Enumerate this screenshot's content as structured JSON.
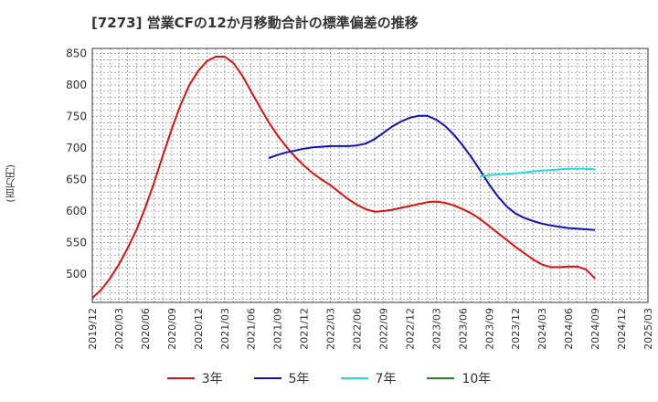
{
  "chart_data": {
    "type": "line",
    "title": "[7273]  営業CFの12か月移動合計の標準偏差の推移",
    "ylabel": "(百万円)",
    "xlabel": "",
    "ylim": [
      455,
      858
    ],
    "yticks": [
      500,
      550,
      600,
      650,
      700,
      750,
      800,
      850
    ],
    "xticks": [
      "2019/12",
      "2020/03",
      "2020/06",
      "2020/09",
      "2020/12",
      "2021/03",
      "2021/06",
      "2021/09",
      "2021/12",
      "2022/03",
      "2022/06",
      "2022/09",
      "2022/12",
      "2023/03",
      "2023/06",
      "2023/09",
      "2023/12",
      "2024/03",
      "2024/06",
      "2024/09",
      "2024/12",
      "2025/03"
    ],
    "grid": true,
    "legend_position": "bottom",
    "series": [
      {
        "name": "3年",
        "color": "#dd1111",
        "points": [
          [
            "2019/12",
            462
          ],
          [
            "2020/01",
            475
          ],
          [
            "2020/02",
            493
          ],
          [
            "2020/03",
            515
          ],
          [
            "2020/04",
            541
          ],
          [
            "2020/05",
            570
          ],
          [
            "2020/06",
            605
          ],
          [
            "2020/07",
            645
          ],
          [
            "2020/08",
            688
          ],
          [
            "2020/09",
            730
          ],
          [
            "2020/10",
            768
          ],
          [
            "2020/11",
            800
          ],
          [
            "2020/12",
            822
          ],
          [
            "2021/01",
            838
          ],
          [
            "2021/02",
            845
          ],
          [
            "2021/03",
            845
          ],
          [
            "2021/04",
            835
          ],
          [
            "2021/05",
            815
          ],
          [
            "2021/06",
            790
          ],
          [
            "2021/07",
            765
          ],
          [
            "2021/08",
            741
          ],
          [
            "2021/09",
            720
          ],
          [
            "2021/10",
            702
          ],
          [
            "2021/11",
            686
          ],
          [
            "2021/12",
            672
          ],
          [
            "2022/01",
            660
          ],
          [
            "2022/02",
            650
          ],
          [
            "2022/03",
            641
          ],
          [
            "2022/04",
            630
          ],
          [
            "2022/05",
            619
          ],
          [
            "2022/06",
            610
          ],
          [
            "2022/07",
            603
          ],
          [
            "2022/08",
            599
          ],
          [
            "2022/09",
            600
          ],
          [
            "2022/10",
            602
          ],
          [
            "2022/11",
            605
          ],
          [
            "2022/12",
            608
          ],
          [
            "2023/01",
            611
          ],
          [
            "2023/02",
            614
          ],
          [
            "2023/03",
            615
          ],
          [
            "2023/04",
            613
          ],
          [
            "2023/05",
            609
          ],
          [
            "2023/06",
            603
          ],
          [
            "2023/07",
            596
          ],
          [
            "2023/08",
            587
          ],
          [
            "2023/09",
            576
          ],
          [
            "2023/10",
            565
          ],
          [
            "2023/11",
            554
          ],
          [
            "2023/12",
            543
          ],
          [
            "2024/01",
            533
          ],
          [
            "2024/02",
            523
          ],
          [
            "2024/03",
            515
          ],
          [
            "2024/04",
            511
          ],
          [
            "2024/05",
            511
          ],
          [
            "2024/06",
            512
          ],
          [
            "2024/07",
            512
          ],
          [
            "2024/08",
            507
          ],
          [
            "2024/09",
            493
          ]
        ]
      },
      {
        "name": "5年",
        "color": "#1111bb",
        "points": [
          [
            "2021/08",
            684
          ],
          [
            "2021/09",
            689
          ],
          [
            "2021/10",
            693
          ],
          [
            "2021/11",
            696
          ],
          [
            "2021/12",
            699
          ],
          [
            "2022/01",
            701
          ],
          [
            "2022/02",
            702
          ],
          [
            "2022/03",
            703
          ],
          [
            "2022/04",
            703
          ],
          [
            "2022/05",
            703
          ],
          [
            "2022/06",
            704
          ],
          [
            "2022/07",
            707
          ],
          [
            "2022/08",
            714
          ],
          [
            "2022/09",
            724
          ],
          [
            "2022/10",
            734
          ],
          [
            "2022/11",
            742
          ],
          [
            "2022/12",
            748
          ],
          [
            "2023/01",
            751
          ],
          [
            "2023/02",
            751
          ],
          [
            "2023/03",
            745
          ],
          [
            "2023/04",
            735
          ],
          [
            "2023/05",
            721
          ],
          [
            "2023/06",
            704
          ],
          [
            "2023/07",
            685
          ],
          [
            "2023/08",
            664
          ],
          [
            "2023/09",
            642
          ],
          [
            "2023/10",
            623
          ],
          [
            "2023/11",
            607
          ],
          [
            "2023/12",
            596
          ],
          [
            "2024/01",
            589
          ],
          [
            "2024/02",
            584
          ],
          [
            "2024/03",
            580
          ],
          [
            "2024/04",
            577
          ],
          [
            "2024/05",
            575
          ],
          [
            "2024/06",
            573
          ],
          [
            "2024/07",
            572
          ],
          [
            "2024/08",
            571
          ],
          [
            "2024/09",
            570
          ]
        ]
      },
      {
        "name": "7年",
        "color": "#22dddd",
        "points": [
          [
            "2023/08",
            655
          ],
          [
            "2023/09",
            657
          ],
          [
            "2023/10",
            658
          ],
          [
            "2023/11",
            659
          ],
          [
            "2023/12",
            660
          ],
          [
            "2024/01",
            661
          ],
          [
            "2024/02",
            663
          ],
          [
            "2024/03",
            664
          ],
          [
            "2024/04",
            665
          ],
          [
            "2024/05",
            666
          ],
          [
            "2024/06",
            667
          ],
          [
            "2024/07",
            667
          ],
          [
            "2024/08",
            667
          ],
          [
            "2024/09",
            666
          ]
        ]
      },
      {
        "name": "10年",
        "color": "#228822",
        "points": []
      }
    ]
  }
}
